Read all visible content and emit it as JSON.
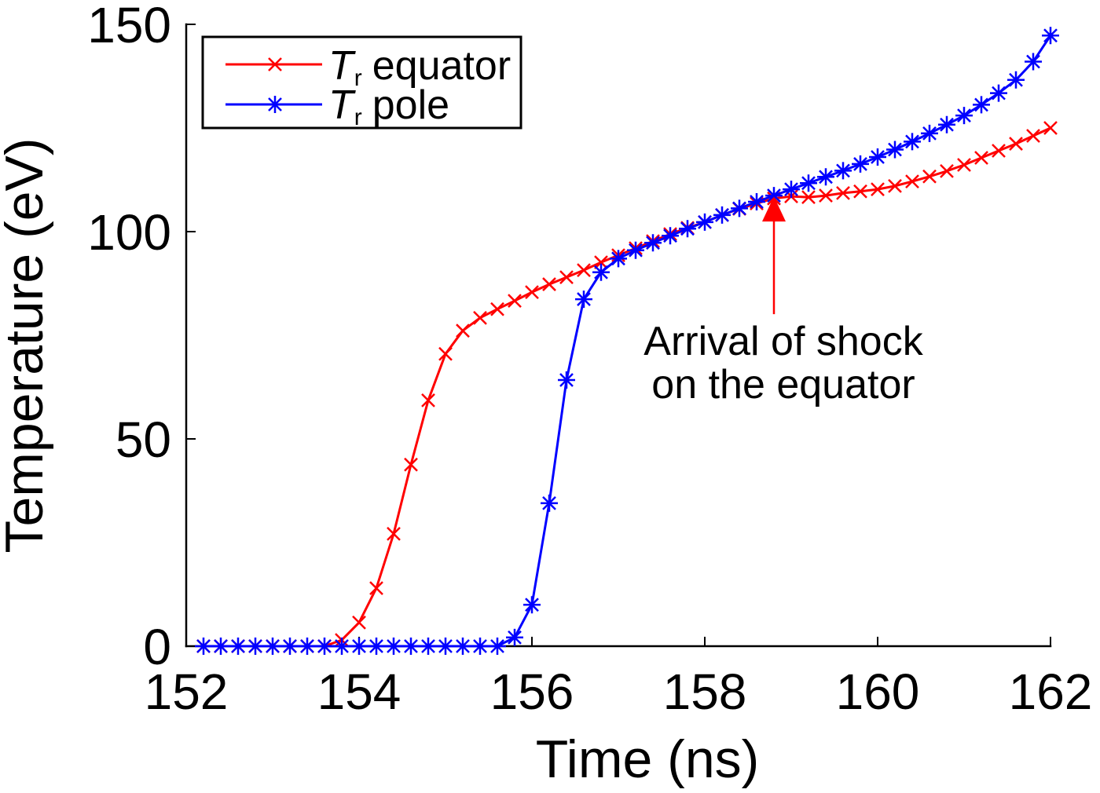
{
  "chart_data": {
    "type": "line",
    "xlabel": "Time (ns)",
    "ylabel": "Temperature (eV)",
    "xlim": [
      152,
      162
    ],
    "ylim": [
      0,
      150
    ],
    "xticks": [
      152,
      154,
      156,
      158,
      160,
      162
    ],
    "yticks": [
      0,
      50,
      100,
      150
    ],
    "grid": false,
    "legend_position": "top-left",
    "x": [
      152.2,
      152.4,
      152.6,
      152.8,
      153.0,
      153.2,
      153.4,
      153.6,
      153.8,
      154.0,
      154.2,
      154.4,
      154.6,
      154.8,
      155.0,
      155.2,
      155.4,
      155.6,
      155.8,
      156.0,
      156.2,
      156.4,
      156.6,
      156.8,
      157.0,
      157.2,
      157.4,
      157.6,
      157.8,
      158.0,
      158.2,
      158.4,
      158.6,
      158.8,
      159.0,
      159.2,
      159.4,
      159.6,
      159.8,
      160.0,
      160.2,
      160.4,
      160.6,
      160.8,
      161.0,
      161.2,
      161.4,
      161.6,
      161.8,
      162.0
    ],
    "series": [
      {
        "name": "equator",
        "symbol": "T",
        "subscript": "r",
        "color": "#ff0000",
        "marker": "x",
        "values": [
          0,
          0,
          0,
          0,
          0,
          0,
          0,
          0,
          1.5,
          5.7,
          14.0,
          27.1,
          43.8,
          59.3,
          70.5,
          76.1,
          79.2,
          81.3,
          83.3,
          85.4,
          87.3,
          89.0,
          90.7,
          92.6,
          94.3,
          96.0,
          97.7,
          99.4,
          100.9,
          102.3,
          104.0,
          105.5,
          106.8,
          108.0,
          108.5,
          108.3,
          108.7,
          109.3,
          109.7,
          110.2,
          111.0,
          112.1,
          113.3,
          114.6,
          116.1,
          117.8,
          119.5,
          121.2,
          123.1,
          125.0
        ]
      },
      {
        "name": "pole",
        "symbol": "T",
        "subscript": "r",
        "color": "#0000ff",
        "marker": "asterisk",
        "values": [
          0,
          0,
          0,
          0,
          0,
          0,
          0,
          0,
          0,
          0,
          0,
          0,
          0,
          0,
          0,
          0,
          0,
          0,
          2.1,
          10.0,
          34.5,
          64.2,
          83.7,
          90.2,
          93.5,
          95.5,
          97.3,
          99.0,
          100.7,
          102.3,
          104.0,
          105.6,
          107.2,
          108.7,
          110.2,
          111.7,
          113.2,
          114.7,
          116.3,
          118.0,
          119.8,
          121.7,
          123.7,
          125.8,
          128.0,
          130.6,
          133.4,
          136.6,
          141.0,
          147.3
        ]
      }
    ],
    "annotations": [
      {
        "lines": [
          "Arrival of shock",
          "on the equator"
        ],
        "x": 158.8,
        "y": 108.5,
        "color": "#ff0000",
        "arrow": true
      }
    ]
  }
}
